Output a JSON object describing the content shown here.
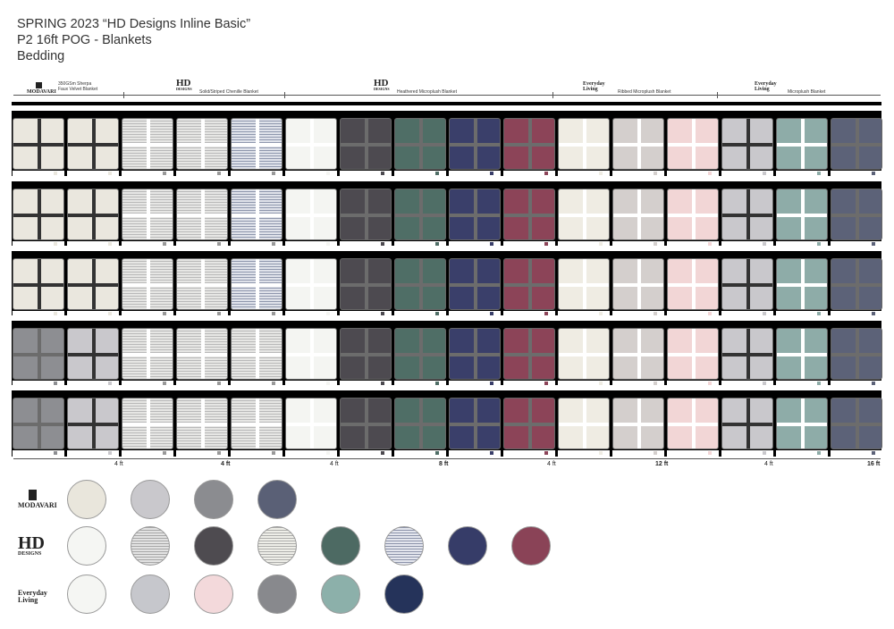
{
  "header": {
    "line1": "SPRING 2023 “HD Designs Inline Basic”",
    "line2": "P2 16ft POG - Blankets",
    "line3": "Bedding"
  },
  "brands": {
    "modavari": "MODAVARI",
    "hd": "HD",
    "hd_sub": "DESIGNS",
    "everyday": "Everyday Living"
  },
  "segments": [
    {
      "label": "350GSm Sherpa\nFaux Velvet Blanket"
    },
    {
      "label": "Solid/Striped Chenille Blanket"
    },
    {
      "label": "Heathered Microplush Blanket"
    },
    {
      "label": "Ribbed Microplush Blanket"
    },
    {
      "label": "Microplush Blanket"
    }
  ],
  "dimensions": [
    "4 ft",
    "4 ft",
    "4 ft",
    "8 ft",
    "4 ft",
    "12 ft",
    "4 ft",
    "16 ft"
  ],
  "colors": {
    "ivory": "#eae7de",
    "lightgray": "#c9c8cc",
    "graymid": "#8d8e92",
    "navygray": "#5c6278",
    "white": "#f4f5f2",
    "stripe": "#dcdcdc",
    "charcoal": "#4d4a50",
    "green": "#4f6e66",
    "navy": "#3a3f6a",
    "berry": "#8c4458",
    "blush": "#f2d6d6",
    "sage": "#8eaca8",
    "navydark": "#253353"
  },
  "shelf_pattern": [
    [
      "ivory",
      "ivory",
      "stripe",
      "stripe",
      "stripeblue",
      "white",
      "charcoal",
      "green",
      "navy",
      "berry",
      "cream",
      "taupe",
      "blush",
      "lightgray",
      "sage",
      "navygray"
    ],
    [
      "ivory",
      "ivory",
      "stripe",
      "stripe",
      "stripeblue",
      "white",
      "charcoal",
      "green",
      "navy",
      "berry",
      "cream",
      "taupe",
      "blush",
      "lightgray",
      "sage",
      "navygray"
    ],
    [
      "ivory",
      "ivory",
      "stripe",
      "stripe",
      "stripeblue",
      "white",
      "charcoal",
      "green",
      "navy",
      "berry",
      "cream",
      "taupe",
      "blush",
      "lightgray",
      "sage",
      "navygray"
    ],
    [
      "graymid",
      "lightgray",
      "stripe",
      "stripe",
      "stripe",
      "white",
      "charcoal",
      "green",
      "navy",
      "berry",
      "cream",
      "taupe",
      "blush",
      "lightgray",
      "sage",
      "navygray"
    ],
    [
      "graymid",
      "lightgray",
      "stripe",
      "stripe",
      "stripe",
      "white",
      "charcoal",
      "green",
      "navy",
      "berry",
      "cream",
      "taupe",
      "blush",
      "lightgray",
      "sage",
      "navygray"
    ]
  ],
  "legend": {
    "modavari": [
      "#e9e6dc",
      "#c9c8cc",
      "#8b8c90",
      "#5a6076"
    ],
    "hd": [
      "#f5f6f3",
      "stripegray",
      "#4e4b50",
      "stripecream",
      "#4d6a63",
      "stripeblue",
      "#363c68",
      "#8a4357"
    ],
    "everyday": [
      "#f5f6f3",
      "#c6c7cc",
      "#f3d9db",
      "#88898d",
      "#8cb0aa",
      "#25335a"
    ]
  }
}
